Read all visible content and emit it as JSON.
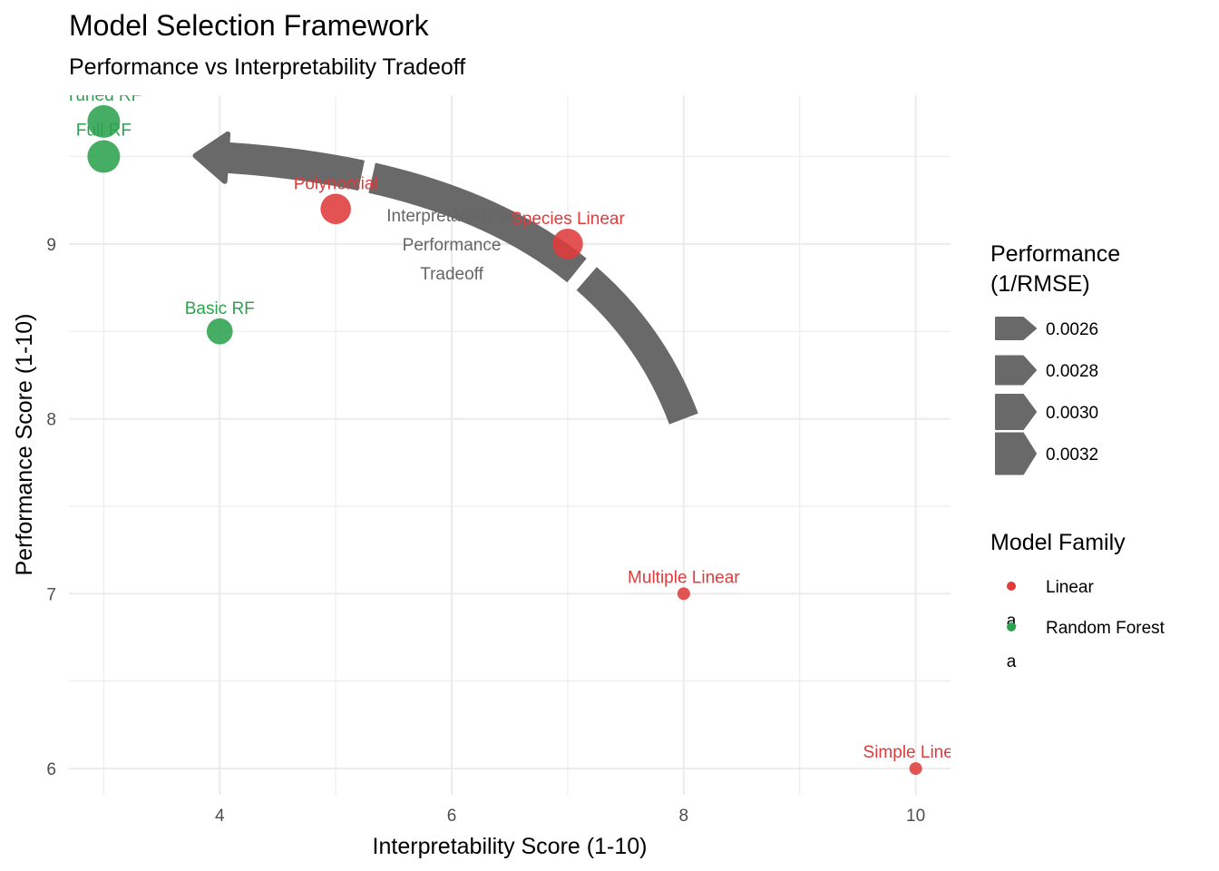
{
  "chart_data": {
    "type": "scatter",
    "title": "Model Selection Framework",
    "subtitle": "Performance vs Interpretability Tradeoff",
    "xlabel": "Interpretability Score (1-10)",
    "ylabel": "Performance Score (1-10)",
    "xlim": [
      2.7,
      10.3
    ],
    "ylim": [
      5.85,
      9.85
    ],
    "x_ticks": [
      4,
      6,
      8,
      10
    ],
    "y_ticks": [
      6,
      7,
      8,
      9
    ],
    "grid": true,
    "series": [
      {
        "name": "Linear",
        "color": "#e03b3b",
        "points": [
          {
            "label": "Polynomial",
            "x": 5,
            "y": 9.2,
            "performance": 0.0033
          },
          {
            "label": "Species Linear",
            "x": 7,
            "y": 9.0,
            "performance": 0.0033
          },
          {
            "label": "Multiple Linear",
            "x": 8,
            "y": 7.0,
            "performance": 0.0025
          },
          {
            "label": "Simple Linear",
            "x": 10,
            "y": 6.0,
            "performance": 0.0025
          }
        ]
      },
      {
        "name": "Random Forest",
        "color": "#2ca24f",
        "points": [
          {
            "label": "Tuned RF",
            "x": 3,
            "y": 9.7,
            "performance": 0.0034
          },
          {
            "label": "Full RF",
            "x": 3,
            "y": 9.5,
            "performance": 0.0034
          },
          {
            "label": "Basic RF",
            "x": 4,
            "y": 8.5,
            "performance": 0.0031
          }
        ]
      }
    ],
    "annotation": {
      "lines": [
        "Interpretability vs",
        "Performance",
        "Tradeoff"
      ],
      "x": 6,
      "y": 9.0
    },
    "tradeoff_arrow": {
      "from": {
        "x": 8,
        "y": 8
      },
      "to": {
        "x": 3.9,
        "y": 9.5
      },
      "color": "#696969"
    },
    "legend": {
      "placement": "right",
      "size": {
        "title_lines": [
          "Performance",
          "(1/RMSE)"
        ],
        "entries": [
          "0.0026",
          "0.0028",
          "0.0030",
          "0.0032"
        ]
      },
      "color": {
        "title": "Model Family",
        "entries": [
          {
            "label": "Linear",
            "color": "#e03b3b"
          },
          {
            "label": "Random Forest",
            "color": "#2ca24f"
          }
        ],
        "key_glyph": "a"
      }
    }
  }
}
